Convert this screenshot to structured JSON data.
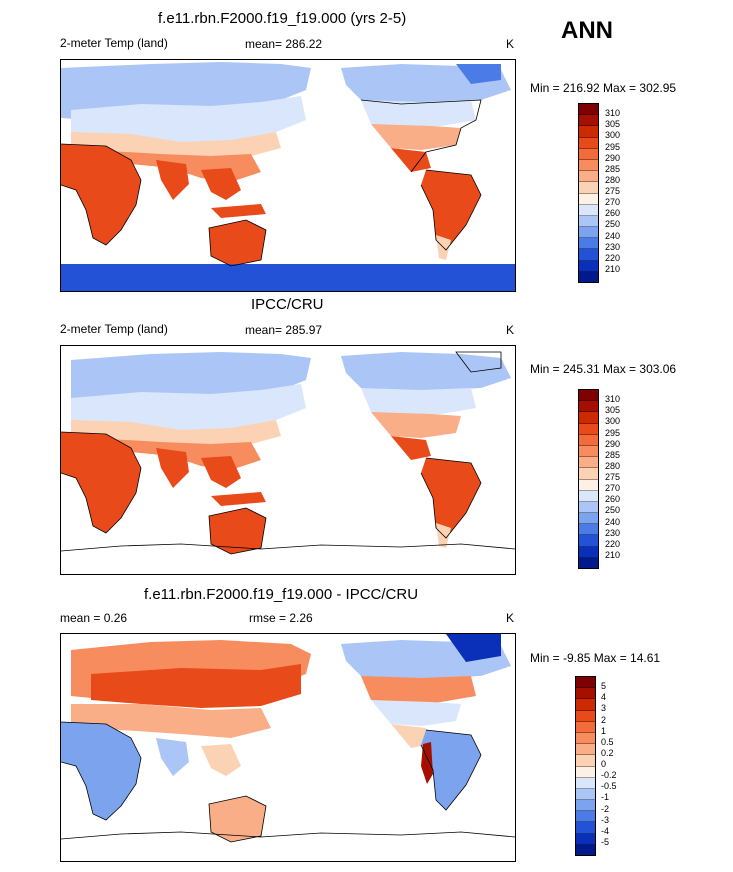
{
  "season_label": "ANN",
  "units": "K",
  "panels": [
    {
      "title": "f.e11.rbn.F2000.f19_f19.000 (yrs 2-5)",
      "left_label": "2-meter Temp (land)",
      "center_label": "mean= 286.22",
      "right_label": "K",
      "minmax": "Min = 216.92 Max = 302.95",
      "colorbar_labels": [
        "310",
        "305",
        "300",
        "295",
        "290",
        "285",
        "280",
        "275",
        "270",
        "260",
        "250",
        "240",
        "230",
        "220",
        "210"
      ]
    },
    {
      "title": "IPCC/CRU",
      "left_label": "2-meter Temp (land)",
      "center_label": "mean= 285.97",
      "right_label": "K",
      "minmax": "Min = 245.31 Max = 303.06",
      "colorbar_labels": [
        "310",
        "305",
        "300",
        "295",
        "290",
        "285",
        "280",
        "275",
        "270",
        "260",
        "250",
        "240",
        "230",
        "220",
        "210"
      ]
    },
    {
      "title": "f.e11.rbn.F2000.f19_f19.000 - IPCC/CRU",
      "left_label": "mean =   0.26",
      "center_label": "rmse =   2.26",
      "right_label": "K",
      "minmax": "Min =  -9.85 Max =  14.61",
      "colorbar_labels": [
        "5",
        "4",
        "3",
        "2",
        "1",
        "0.5",
        "0.2",
        "0",
        "-0.2",
        "-0.5",
        "-1",
        "-2",
        "-3",
        "-4",
        "-5"
      ]
    }
  ],
  "colors": {
    "abs_scale": [
      "#7f0000",
      "#a50f00",
      "#cc2a00",
      "#e84a1a",
      "#f26b3a",
      "#f78c5e",
      "#f9ae87",
      "#fcd2b5",
      "#fdf0e4",
      "#d9e6fb",
      "#abc6f6",
      "#7ca3ee",
      "#4b7be6",
      "#2452d6",
      "#0a2fb8",
      "#001a8c"
    ],
    "diff_scale": [
      "#7f0000",
      "#a50f00",
      "#cc2a00",
      "#e84a1a",
      "#f26b3a",
      "#f78c5e",
      "#f9ae87",
      "#fcd2b5",
      "#fdf0e4",
      "#d9e6fb",
      "#abc6f6",
      "#7ca3ee",
      "#4b7be6",
      "#2452d6",
      "#0a2fb8",
      "#001a8c"
    ]
  }
}
